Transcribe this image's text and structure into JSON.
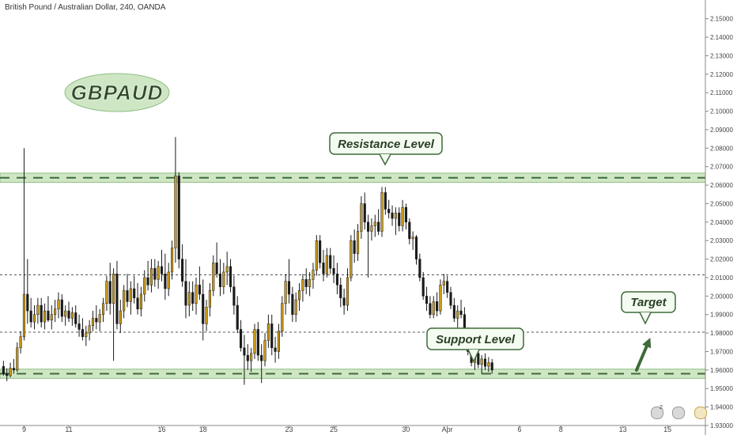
{
  "header": {
    "title": "British Pound / Australian Dollar, 240, OANDA"
  },
  "logo": {
    "text": "GBPAUD"
  },
  "colors": {
    "bull": "#c99a17",
    "bear": "#1a1a1a",
    "zone_fill": "#cfe6c4",
    "zone_edge": "#8fbf84",
    "zone_dash": "#3f6a3a",
    "logo_fill": "#cfe6c4",
    "arrow": "#3f6a3a",
    "axis": "#888888"
  },
  "annotations": {
    "resistance_label": "Resistance Level",
    "support_label": "Support Level",
    "target_label": "Target"
  },
  "status_icons": {
    "badge_count": "2"
  },
  "chart_data": {
    "type": "candlestick",
    "ylim": [
      1.93,
      2.155
    ],
    "y_ticks": [
      "2.15000",
      "2.14000",
      "2.13000",
      "2.12000",
      "2.11000",
      "2.10000",
      "2.09000",
      "2.08000",
      "2.07000",
      "2.06000",
      "2.05000",
      "2.04000",
      "2.03000",
      "2.02000",
      "2.01000",
      "2.00000",
      "1.99000",
      "1.98000",
      "1.97000",
      "1.96000",
      "1.95000",
      "1.94000",
      "1.93000"
    ],
    "x_tick_labels": [
      "9",
      "11",
      "16",
      "18",
      "23",
      "25",
      "30",
      "Apr",
      "6",
      "8",
      "13",
      "15"
    ],
    "x_tick_index": [
      6,
      19,
      46,
      58,
      83,
      96,
      117,
      129,
      150,
      162,
      180,
      193
    ],
    "index_range": [
      -1,
      204
    ],
    "resistance_zone": [
      2.0615,
      2.0665
    ],
    "support_zone": [
      1.9555,
      1.9605
    ],
    "reference_lines": [
      2.0115,
      1.9805
    ],
    "target_arrow": {
      "from_index": 184,
      "from": 1.96,
      "to_index": 188,
      "to": 1.9775
    },
    "candles": [
      [
        1.962,
        1.965,
        1.957,
        1.958
      ],
      [
        1.958,
        1.961,
        1.954,
        1.957
      ],
      [
        1.957,
        1.964,
        1.956,
        1.961
      ],
      [
        1.961,
        1.966,
        1.958,
        1.96
      ],
      [
        1.96,
        1.975,
        1.959,
        1.972
      ],
      [
        1.972,
        1.981,
        1.969,
        1.978
      ],
      [
        1.978,
        2.08,
        1.976,
        2.001
      ],
      [
        2.001,
        2.02,
        1.985,
        1.992
      ],
      [
        1.992,
        1.999,
        1.983,
        1.986
      ],
      [
        1.986,
        1.995,
        1.982,
        1.99
      ],
      [
        1.99,
        1.999,
        1.985,
        1.995
      ],
      [
        1.995,
        1.999,
        1.983,
        1.986
      ],
      [
        1.986,
        1.996,
        1.982,
        1.992
      ],
      [
        1.992,
        2.0,
        1.986,
        1.987
      ],
      [
        1.987,
        1.995,
        1.982,
        1.99
      ],
      [
        1.99,
        1.998,
        1.986,
        1.993
      ],
      [
        1.993,
        2.002,
        1.988,
        1.998
      ],
      [
        1.998,
        2.001,
        1.986,
        1.989
      ],
      [
        1.989,
        1.995,
        1.984,
        1.992
      ],
      [
        1.992,
        1.997,
        1.986,
        1.988
      ],
      [
        1.988,
        1.994,
        1.984,
        1.991
      ],
      [
        1.991,
        1.995,
        1.983,
        1.985
      ],
      [
        1.985,
        1.99,
        1.978,
        1.982
      ],
      [
        1.982,
        1.988,
        1.976,
        1.978
      ],
      [
        1.978,
        1.984,
        1.973,
        1.98
      ],
      [
        1.98,
        1.987,
        1.976,
        1.984
      ],
      [
        1.984,
        1.992,
        1.981,
        1.988
      ],
      [
        1.988,
        1.995,
        1.982,
        1.986
      ],
      [
        1.986,
        1.993,
        1.981,
        1.99
      ],
      [
        1.99,
        1.999,
        1.986,
        1.996
      ],
      [
        1.996,
        2.011,
        1.992,
        2.008
      ],
      [
        2.008,
        2.018,
        1.99,
        1.996
      ],
      [
        1.996,
        2.015,
        1.965,
        2.012
      ],
      [
        2.012,
        2.019,
        1.982,
        1.985
      ],
      [
        1.985,
        1.998,
        1.98,
        1.992
      ],
      [
        1.992,
        2.006,
        1.988,
        2.003
      ],
      [
        2.003,
        2.012,
        1.994,
        1.997
      ],
      [
        1.997,
        2.008,
        1.99,
        2.004
      ],
      [
        2.004,
        2.011,
        1.996,
        1.999
      ],
      [
        1.999,
        2.007,
        1.99,
        1.993
      ],
      [
        1.993,
        2.005,
        1.989,
        2.001
      ],
      [
        2.001,
        2.014,
        1.997,
        2.01
      ],
      [
        2.01,
        2.019,
        2.003,
        2.006
      ],
      [
        2.006,
        2.02,
        2.002,
        2.015
      ],
      [
        2.015,
        2.02,
        2.005,
        2.009
      ],
      [
        2.009,
        2.019,
        2.004,
        2.016
      ],
      [
        2.016,
        2.025,
        2.008,
        2.012
      ],
      [
        2.012,
        2.023,
        1.998,
        2.004
      ],
      [
        2.004,
        2.018,
        2.0,
        2.013
      ],
      [
        2.013,
        2.03,
        2.009,
        2.026
      ],
      [
        2.026,
        2.086,
        2.018,
        2.065
      ],
      [
        2.065,
        2.067,
        2.015,
        2.02
      ],
      [
        2.02,
        2.028,
        2.005,
        2.008
      ],
      [
        2.008,
        2.02,
        1.988,
        1.995
      ],
      [
        1.995,
        2.008,
        1.989,
        2.002
      ],
      [
        2.002,
        2.008,
        1.992,
        1.996
      ],
      [
        1.996,
        2.01,
        1.99,
        2.006
      ],
      [
        2.006,
        2.016,
        1.998,
        2.001
      ],
      [
        2.001,
        2.009,
        1.976,
        1.985
      ],
      [
        1.985,
        1.998,
        1.981,
        1.994
      ],
      [
        1.994,
        2.007,
        1.989,
        2.003
      ],
      [
        2.003,
        2.022,
        2.0,
        2.018
      ],
      [
        2.018,
        2.029,
        2.01,
        2.012
      ],
      [
        2.012,
        2.02,
        2.0,
        2.005
      ],
      [
        2.005,
        2.018,
        2.001,
        2.013
      ],
      [
        2.013,
        2.024,
        2.006,
        2.016
      ],
      [
        2.016,
        2.02,
        2.002,
        2.005
      ],
      [
        2.005,
        2.011,
        1.99,
        1.995
      ],
      [
        1.995,
        2.0,
        1.98,
        1.982
      ],
      [
        1.982,
        1.987,
        1.97,
        1.972
      ],
      [
        1.972,
        1.979,
        1.952,
        1.968
      ],
      [
        1.968,
        1.974,
        1.96,
        1.965
      ],
      [
        1.965,
        1.972,
        1.959,
        1.969
      ],
      [
        1.969,
        1.985,
        1.966,
        1.982
      ],
      [
        1.982,
        1.986,
        1.965,
        1.968
      ],
      [
        1.968,
        1.974,
        1.953,
        1.965
      ],
      [
        1.965,
        1.98,
        1.962,
        1.976
      ],
      [
        1.976,
        1.99,
        1.972,
        1.985
      ],
      [
        1.985,
        1.99,
        1.968,
        1.972
      ],
      [
        1.972,
        1.978,
        1.964,
        1.97
      ],
      [
        1.97,
        1.985,
        1.966,
        1.981
      ],
      [
        1.981,
        2.0,
        1.978,
        1.996
      ],
      [
        1.996,
        2.012,
        1.99,
        2.008
      ],
      [
        2.008,
        2.02,
        1.996,
        2.001
      ],
      [
        2.001,
        2.005,
        1.986,
        1.99
      ],
      [
        1.99,
        2.002,
        1.986,
        1.998
      ],
      [
        1.998,
        2.007,
        1.992,
        2.003
      ],
      [
        2.003,
        2.012,
        1.997,
        2.009
      ],
      [
        2.009,
        2.015,
        2.001,
        2.005
      ],
      [
        2.005,
        2.013,
        2.0,
        2.009
      ],
      [
        2.009,
        2.018,
        2.004,
        2.014
      ],
      [
        2.014,
        2.033,
        2.011,
        2.03
      ],
      [
        2.03,
        2.033,
        2.015,
        2.018
      ],
      [
        2.018,
        2.025,
        2.008,
        2.012
      ],
      [
        2.012,
        2.026,
        2.01,
        2.022
      ],
      [
        2.022,
        2.026,
        2.012,
        2.015
      ],
      [
        2.015,
        2.022,
        2.007,
        2.012
      ],
      [
        2.012,
        2.018,
        2.001,
        2.006
      ],
      [
        2.006,
        2.01,
        1.994,
        1.999
      ],
      [
        1.999,
        2.004,
        1.99,
        1.995
      ],
      [
        1.995,
        2.015,
        1.992,
        2.01
      ],
      [
        2.01,
        2.033,
        2.008,
        2.03
      ],
      [
        2.03,
        2.036,
        2.018,
        2.023
      ],
      [
        2.023,
        2.039,
        2.019,
        2.035
      ],
      [
        2.035,
        2.054,
        2.031,
        2.05
      ],
      [
        2.05,
        2.056,
        2.036,
        2.04
      ],
      [
        2.04,
        2.044,
        2.01,
        2.035
      ],
      [
        2.035,
        2.042,
        2.03,
        2.038
      ],
      [
        2.038,
        2.044,
        2.032,
        2.04
      ],
      [
        2.04,
        2.047,
        2.033,
        2.035
      ],
      [
        2.035,
        2.059,
        2.032,
        2.056
      ],
      [
        2.056,
        2.059,
        2.044,
        2.047
      ],
      [
        2.047,
        2.052,
        2.042,
        2.045
      ],
      [
        2.045,
        2.049,
        2.038,
        2.042
      ],
      [
        2.042,
        2.048,
        2.033,
        2.045
      ],
      [
        2.045,
        2.048,
        2.035,
        2.038
      ],
      [
        2.038,
        2.052,
        2.035,
        2.048
      ],
      [
        2.048,
        2.05,
        2.036,
        2.04
      ],
      [
        2.04,
        2.042,
        2.028,
        2.031
      ],
      [
        2.031,
        2.035,
        2.025,
        2.032
      ],
      [
        2.032,
        2.033,
        2.017,
        2.02
      ],
      [
        2.02,
        2.023,
        2.008,
        2.01
      ],
      [
        2.01,
        2.013,
        1.998,
        2.0
      ],
      [
        2.0,
        2.005,
        1.992,
        1.996
      ],
      [
        1.996,
        2.0,
        1.988,
        1.99
      ],
      [
        1.99,
        2.0,
        1.988,
        1.997
      ],
      [
        1.997,
        2.002,
        1.989,
        1.992
      ],
      [
        1.992,
        2.009,
        1.99,
        2.006
      ],
      [
        2.006,
        2.012,
        2.001,
        2.008
      ],
      [
        2.008,
        2.011,
        1.999,
        2.002
      ],
      [
        2.002,
        2.005,
        1.993,
        1.995
      ],
      [
        1.995,
        1.999,
        1.986,
        1.988
      ],
      [
        1.988,
        1.995,
        1.983,
        1.992
      ],
      [
        1.992,
        1.998,
        1.988,
        1.99
      ],
      [
        1.99,
        1.994,
        1.978,
        1.98
      ],
      [
        1.98,
        1.983,
        1.968,
        1.97
      ],
      [
        1.97,
        1.975,
        1.962,
        1.964
      ],
      [
        1.964,
        1.972,
        1.96,
        1.969
      ],
      [
        1.969,
        1.972,
        1.961,
        1.963
      ],
      [
        1.963,
        1.968,
        1.958,
        1.966
      ],
      [
        1.966,
        1.969,
        1.96,
        1.962
      ],
      [
        1.962,
        1.967,
        1.959,
        1.964
      ],
      [
        1.964,
        1.966,
        1.958,
        1.96
      ]
    ]
  }
}
